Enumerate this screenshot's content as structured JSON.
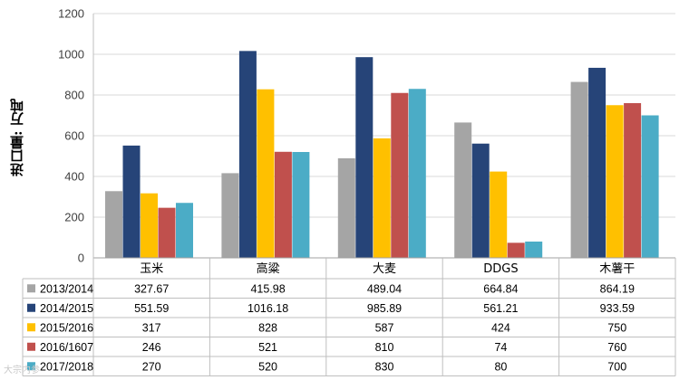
{
  "chart_data": {
    "type": "bar",
    "title": "",
    "xlabel": "",
    "ylabel": "进口量: 万吨",
    "ylim": [
      0,
      1200
    ],
    "yticks": [
      "0",
      "200",
      "400",
      "600",
      "800",
      "1000",
      "1200"
    ],
    "grid": true,
    "categories": [
      "玉米",
      "高粱",
      "大麦",
      "DDGS",
      "木薯干"
    ],
    "series": [
      {
        "name": "2013/2014",
        "color": "#A5A5A5",
        "values": [
          327.67,
          415.98,
          489.04,
          664.84,
          864.19
        ],
        "labels": [
          "327.67",
          "415.98",
          "489.04",
          "664.84",
          "864.19"
        ]
      },
      {
        "name": "2014/2015",
        "color": "#264478",
        "values": [
          551.59,
          1016.18,
          985.89,
          561.21,
          933.59
        ],
        "labels": [
          "551.59",
          "1016.18",
          "985.89",
          "561.21",
          "933.59"
        ]
      },
      {
        "name": "2015/2016",
        "color": "#FFC000",
        "values": [
          317,
          828,
          587,
          424,
          750
        ],
        "labels": [
          "317",
          "828",
          "587",
          "424",
          "750"
        ]
      },
      {
        "name": "2016/1607",
        "color": "#C0504D",
        "values": [
          246,
          521,
          810,
          74,
          760
        ],
        "labels": [
          "246",
          "521",
          "810",
          "74",
          "760"
        ]
      },
      {
        "name": "2017/2018",
        "color": "#4BACC6",
        "values": [
          270,
          520,
          830,
          80,
          700
        ],
        "labels": [
          "270",
          "520",
          "830",
          "80",
          "700"
        ]
      }
    ],
    "legend": "data-table-below"
  },
  "watermark": "大宗内参"
}
